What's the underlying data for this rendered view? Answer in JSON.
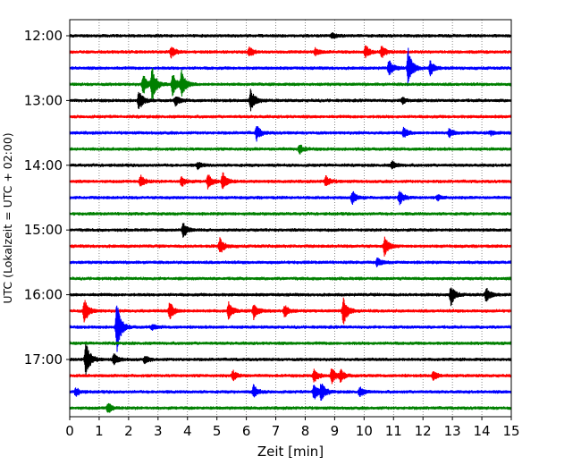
{
  "chart_data": {
    "type": "line",
    "title": "",
    "xlabel": "Zeit  [min]",
    "ylabel": "UTC (Lokalzeit = UTC + 02:00)",
    "xlim": [
      0,
      15
    ],
    "x_ticks": [
      "0",
      "1",
      "2",
      "3",
      "4",
      "5",
      "6",
      "7",
      "8",
      "9",
      "10",
      "11",
      "12",
      "13",
      "14",
      "15"
    ],
    "y_ticks": [
      "12:00",
      "13:00",
      "14:00",
      "15:00",
      "16:00",
      "17:00"
    ],
    "grid": "vertical dotted at each minute",
    "traces_per_hour": 4,
    "trace_colors": [
      "#000000",
      "#ff0000",
      "#0000ff",
      "#008000"
    ],
    "traces": [
      {
        "start": "12:00",
        "events": [
          [
            8.9,
            0.15
          ]
        ]
      },
      {
        "start": "12:15",
        "events": [
          [
            3.45,
            0.35
          ],
          [
            6.1,
            0.3
          ],
          [
            8.35,
            0.2
          ],
          [
            10.05,
            0.4
          ],
          [
            10.6,
            0.35
          ]
        ]
      },
      {
        "start": "12:30",
        "events": [
          [
            10.85,
            0.5
          ],
          [
            11.5,
            1.2
          ],
          [
            12.25,
            0.45
          ]
        ]
      },
      {
        "start": "12:45",
        "events": [
          [
            2.5,
            0.6
          ],
          [
            2.8,
            1.1
          ],
          [
            3.5,
            0.7
          ],
          [
            3.8,
            0.8
          ]
        ]
      },
      {
        "start": "13:00",
        "events": [
          [
            2.35,
            0.6
          ],
          [
            3.6,
            0.3
          ],
          [
            6.15,
            0.75
          ],
          [
            11.3,
            0.2
          ]
        ]
      },
      {
        "start": "13:15",
        "events": []
      },
      {
        "start": "13:30",
        "events": [
          [
            6.35,
            0.45
          ],
          [
            11.35,
            0.3
          ],
          [
            12.9,
            0.25
          ],
          [
            14.3,
            0.15
          ]
        ]
      },
      {
        "start": "13:45",
        "events": [
          [
            7.8,
            0.3
          ]
        ]
      },
      {
        "start": "14:00",
        "events": [
          [
            4.35,
            0.2
          ],
          [
            10.95,
            0.25
          ]
        ]
      },
      {
        "start": "14:15",
        "events": [
          [
            2.4,
            0.4
          ],
          [
            3.8,
            0.3
          ],
          [
            4.7,
            0.45
          ],
          [
            5.2,
            0.6
          ],
          [
            8.7,
            0.35
          ]
        ]
      },
      {
        "start": "14:30",
        "events": [
          [
            9.6,
            0.4
          ],
          [
            11.2,
            0.45
          ],
          [
            12.5,
            0.15
          ]
        ]
      },
      {
        "start": "14:45",
        "events": []
      },
      {
        "start": "15:00",
        "events": [
          [
            3.85,
            0.45
          ]
        ]
      },
      {
        "start": "15:15",
        "events": [
          [
            5.1,
            0.5
          ],
          [
            10.7,
            0.6
          ]
        ]
      },
      {
        "start": "15:30",
        "events": [
          [
            10.45,
            0.25
          ]
        ]
      },
      {
        "start": "15:45",
        "events": []
      },
      {
        "start": "16:00",
        "events": [
          [
            12.95,
            0.6
          ],
          [
            14.15,
            0.45
          ]
        ]
      },
      {
        "start": "16:15",
        "events": [
          [
            0.5,
            0.75
          ],
          [
            3.4,
            0.55
          ],
          [
            5.4,
            0.5
          ],
          [
            6.25,
            0.5
          ],
          [
            7.3,
            0.4
          ],
          [
            9.3,
            0.9
          ]
        ]
      },
      {
        "start": "16:30",
        "events": [
          [
            1.6,
            1.6
          ],
          [
            2.8,
            0.15
          ]
        ]
      },
      {
        "start": "16:45",
        "events": []
      },
      {
        "start": "17:00",
        "events": [
          [
            0.55,
            1.2
          ],
          [
            1.5,
            0.35
          ],
          [
            2.55,
            0.2
          ]
        ]
      },
      {
        "start": "17:15",
        "events": [
          [
            5.55,
            0.3
          ],
          [
            8.3,
            0.4
          ],
          [
            8.9,
            0.45
          ],
          [
            9.2,
            0.35
          ],
          [
            12.35,
            0.3
          ]
        ]
      },
      {
        "start": "17:30",
        "events": [
          [
            0.2,
            0.25
          ],
          [
            6.25,
            0.4
          ],
          [
            8.3,
            0.55
          ],
          [
            8.55,
            0.5
          ],
          [
            9.85,
            0.3
          ]
        ]
      },
      {
        "start": "17:45",
        "events": [
          [
            1.3,
            0.35
          ]
        ]
      }
    ]
  }
}
